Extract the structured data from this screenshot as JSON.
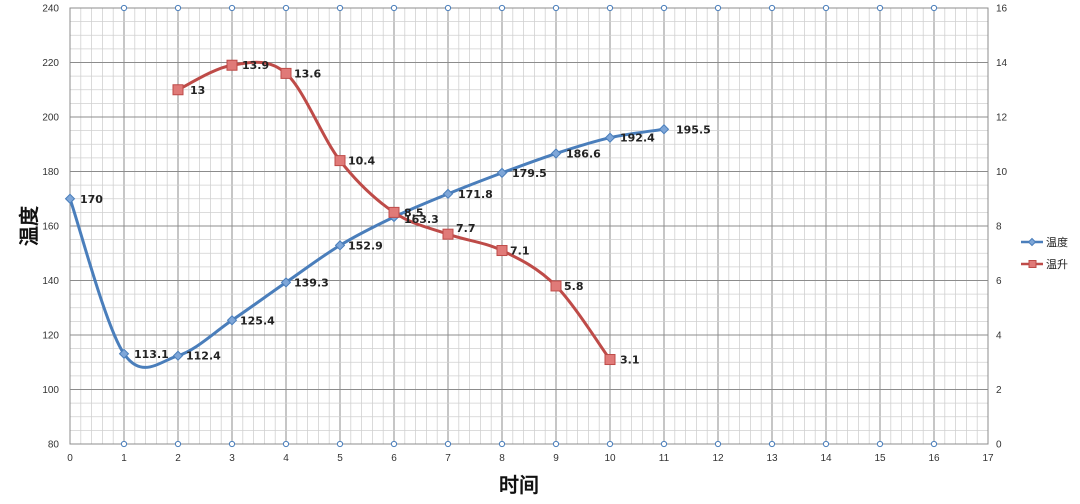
{
  "chart_data": {
    "type": "line",
    "xlabel": "时间",
    "ylabel": "温度",
    "xlim": [
      0,
      17
    ],
    "ylim": [
      80,
      240
    ],
    "y2lim": [
      0,
      16
    ],
    "x_ticks": [
      "0",
      "1",
      "2",
      "3",
      "4",
      "5",
      "6",
      "7",
      "8",
      "9",
      "10",
      "11",
      "12",
      "13",
      "14",
      "15",
      "16",
      "17"
    ],
    "y_ticks": [
      "80",
      "100",
      "120",
      "140",
      "160",
      "180",
      "200",
      "220",
      "240"
    ],
    "y2_ticks": [
      "0",
      "2",
      "4",
      "6",
      "8",
      "10",
      "12",
      "14",
      "16"
    ],
    "grid": true,
    "legend_position": "right",
    "series": [
      {
        "name": "温度",
        "axis": "left",
        "color": "#4a7ebb",
        "marker": "diamond",
        "x": [
          0,
          1,
          2,
          3,
          4,
          5,
          6,
          7,
          8,
          9,
          10,
          11
        ],
        "values": [
          170,
          113.1,
          112.4,
          125.4,
          139.3,
          152.9,
          163.3,
          171.8,
          179.5,
          186.6,
          192.4,
          195.5
        ],
        "labels": [
          "170",
          "113.1",
          "112.4",
          "125.4",
          "139.3",
          "152.9",
          "163.3",
          "171.8",
          "179.5",
          "186.6",
          "192.4",
          "195.5"
        ]
      },
      {
        "name": "温升",
        "axis": "right",
        "color": "#be4b48",
        "marker": "square",
        "x": [
          2,
          3,
          4,
          5,
          6,
          7,
          8,
          9,
          10
        ],
        "values": [
          13,
          13.9,
          13.6,
          10.4,
          8.5,
          7.7,
          7.1,
          5.8,
          3.1
        ],
        "labels": [
          "13",
          "13.9",
          "13.6",
          "10.4",
          "8.5",
          "7.7",
          "7.1",
          "5.8",
          "3.1"
        ]
      }
    ]
  }
}
